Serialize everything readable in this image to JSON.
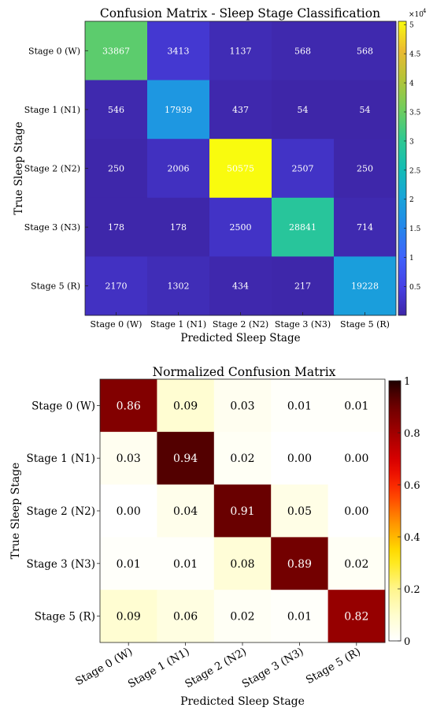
{
  "chart_data": [
    {
      "type": "heatmap",
      "title": "Confusion Matrix - Sleep Stage Classification",
      "xlabel": "Predicted Sleep Stage",
      "ylabel": "True Sleep Stage",
      "x_categories": [
        "Stage 0 (W)",
        "Stage 1 (N1)",
        "Stage 2 (N2)",
        "Stage 3 (N3)",
        "Stage 5 (R)"
      ],
      "y_categories": [
        "Stage 0 (W)",
        "Stage 1 (N1)",
        "Stage 2 (N2)",
        "Stage 3 (N3)",
        "Stage 5 (R)"
      ],
      "values": [
        [
          33867,
          3413,
          1137,
          568,
          568
        ],
        [
          546,
          17939,
          437,
          54,
          54
        ],
        [
          250,
          2006,
          50575,
          2507,
          250
        ],
        [
          178,
          178,
          2500,
          28841,
          714
        ],
        [
          2170,
          1302,
          434,
          217,
          19228
        ]
      ],
      "colormap": "parula",
      "clim": [
        54,
        50575
      ],
      "colorbar": {
        "exponent_label": "×10",
        "exponent_power": "4",
        "ticks": [
          0.5,
          1,
          1.5,
          2,
          2.5,
          3,
          3.5,
          4,
          4.5,
          5
        ],
        "tick_labels": [
          "0.5",
          "1",
          "1.5",
          "2",
          "2.5",
          "3",
          "3.5",
          "4",
          "4.5",
          "5"
        ],
        "scale": 10000
      },
      "cell_text_color": "#ffffff"
    },
    {
      "type": "heatmap",
      "title": "Normalized Confusion Matrix",
      "xlabel": "Predicted Sleep Stage",
      "ylabel": "True Sleep Stage",
      "x_categories": [
        "Stage 0 (W)",
        "Stage 1 (N1)",
        "Stage 2 (N2)",
        "Stage 3 (N3)",
        "Stage 5 (R)"
      ],
      "y_categories": [
        "Stage 0 (W)",
        "Stage 1 (N1)",
        "Stage 2 (N2)",
        "Stage 3 (N3)",
        "Stage 5 (R)"
      ],
      "values": [
        [
          0.86,
          0.09,
          0.03,
          0.01,
          0.01
        ],
        [
          0.03,
          0.94,
          0.02,
          0.0,
          0.0
        ],
        [
          0.0,
          0.04,
          0.91,
          0.05,
          0.0
        ],
        [
          0.01,
          0.01,
          0.08,
          0.89,
          0.02
        ],
        [
          0.09,
          0.06,
          0.02,
          0.01,
          0.82
        ]
      ],
      "colormap": "hot-reversed",
      "clim": [
        0,
        1
      ],
      "colorbar": {
        "ticks": [
          0,
          0.2,
          0.4,
          0.6,
          0.8,
          1
        ],
        "tick_labels": [
          "0",
          "0.2",
          "0.4",
          "0.6",
          "0.8",
          "1"
        ]
      },
      "dark_text_color": "#000000",
      "light_text_color": "#ffffff"
    }
  ]
}
